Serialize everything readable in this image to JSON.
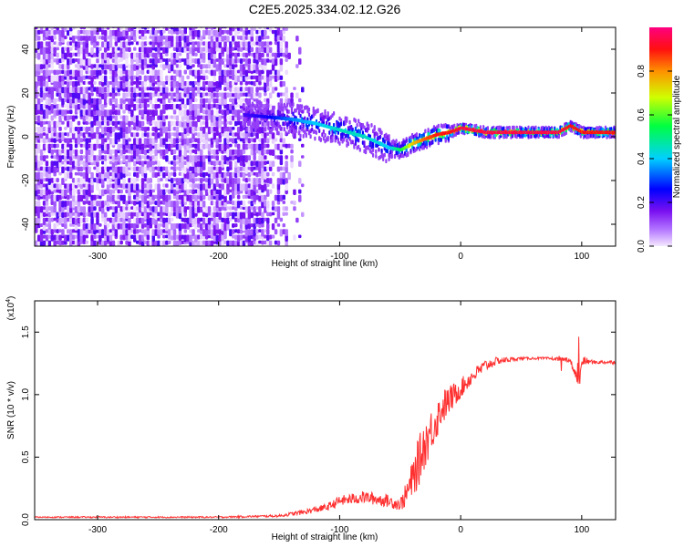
{
  "title": "C2E5.2025.334.02.12.G26",
  "chart_data": [
    {
      "type": "heatmap",
      "title": "C2E5.2025.334.02.12.G26",
      "xlabel": "Height of straight line (km)",
      "ylabel": "Frequency (Hz)",
      "xlim": [
        -352,
        128
      ],
      "ylim": [
        -50,
        50
      ],
      "xticks": [
        -300,
        -200,
        -100,
        0,
        100
      ],
      "yticks": [
        -40,
        -20,
        0,
        20,
        40
      ],
      "colorbar": {
        "label": "Normalized spectral amplitude",
        "range": [
          0,
          1
        ],
        "ticks": [
          "0.0",
          "0.2",
          "0.4",
          "0.6",
          "0.8"
        ],
        "colors": [
          "#e6c8ff",
          "#8a2be2",
          "#0000ff",
          "#00ffff",
          "#00ff00",
          "#ffff00",
          "#ff8000",
          "#ff0000",
          "#ff00a0"
        ]
      },
      "noise_region": {
        "x_from": -352,
        "x_to": -130,
        "amplitude_range": [
          0.0,
          0.2
        ]
      },
      "signal_track": {
        "x": [
          -180,
          -160,
          -140,
          -120,
          -100,
          -80,
          -60,
          -50,
          -40,
          -30,
          -20,
          -10,
          0,
          20,
          50,
          80,
          90,
          100,
          128
        ],
        "frequency": [
          10,
          9,
          8,
          6,
          3,
          0,
          -5,
          -6,
          -3,
          -1,
          1,
          2,
          4,
          2,
          2,
          2,
          5,
          2,
          2
        ],
        "amplitude": [
          0.2,
          0.25,
          0.35,
          0.4,
          0.45,
          0.45,
          0.4,
          0.55,
          0.75,
          0.85,
          0.9,
          0.9,
          0.95,
          0.95,
          0.95,
          0.95,
          0.9,
          0.9,
          0.9
        ]
      }
    },
    {
      "type": "line",
      "xlabel": "Height of straight line (km)",
      "ylabel": "SNR (10 * v/v)",
      "scale_label": "(x10",
      "scale_exp": "4",
      "scale_close": ")",
      "xlim": [
        -352,
        128
      ],
      "ylim": [
        0,
        1.75
      ],
      "xticks": [
        -300,
        -200,
        -100,
        0,
        100
      ],
      "yticks": [
        "0.0",
        "0.5",
        "1.0",
        "1.5"
      ],
      "series": [
        {
          "name": "SNR",
          "color": "#ff3030",
          "x": [
            -352,
            -300,
            -200,
            -150,
            -130,
            -110,
            -100,
            -80,
            -60,
            -50,
            -45,
            -40,
            -35,
            -30,
            -25,
            -20,
            -15,
            -10,
            -5,
            0,
            10,
            20,
            30,
            40,
            50,
            70,
            90,
            98,
            100,
            110,
            128
          ],
          "y": [
            0.02,
            0.02,
            0.02,
            0.03,
            0.06,
            0.1,
            0.15,
            0.18,
            0.15,
            0.12,
            0.2,
            0.32,
            0.45,
            0.6,
            0.7,
            0.8,
            0.9,
            0.95,
            1.0,
            1.05,
            1.15,
            1.23,
            1.27,
            1.28,
            1.29,
            1.29,
            1.28,
            1.1,
            1.27,
            1.26,
            1.26
          ],
          "noise": [
            0.005,
            0.006,
            0.006,
            0.01,
            0.02,
            0.03,
            0.04,
            0.05,
            0.05,
            0.05,
            0.1,
            0.15,
            0.2,
            0.2,
            0.18,
            0.16,
            0.14,
            0.12,
            0.1,
            0.08,
            0.06,
            0.05,
            0.03,
            0.02,
            0.01,
            0.01,
            0.02,
            0.05,
            0.04,
            0.015,
            0.015
          ]
        }
      ]
    }
  ]
}
